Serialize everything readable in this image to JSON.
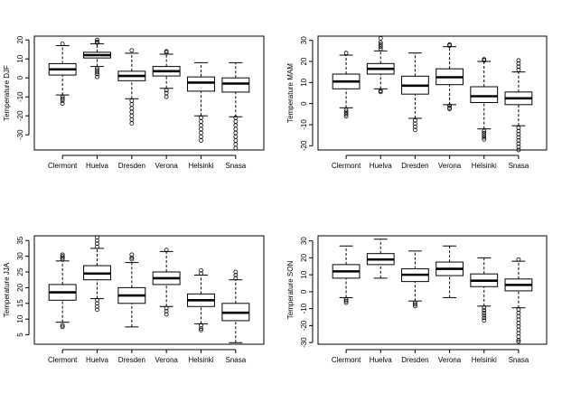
{
  "chart_data": [
    {
      "type": "boxplot",
      "ylabel": "Temperature DJF",
      "categories": [
        "Clermont",
        "Huelva",
        "Dresden",
        "Verona",
        "Helsinki",
        "Snasa"
      ],
      "yticks": [
        -30,
        -20,
        -10,
        0,
        10,
        20
      ],
      "ylim": [
        -38,
        22
      ],
      "boxes": [
        {
          "wlo": -9,
          "q1": 1.5,
          "med": 4.5,
          "q3": 7.5,
          "whi": 17,
          "outliers": [
            -10,
            -11,
            -12,
            -13.5,
            18
          ]
        },
        {
          "wlo": 6,
          "q1": 10.5,
          "med": 12,
          "q3": 13.5,
          "whi": 18,
          "outliers": [
            0.5,
            2,
            3,
            4,
            5,
            18.5,
            19,
            20
          ]
        },
        {
          "wlo": -11,
          "q1": -1.5,
          "med": 1,
          "q3": 3.5,
          "whi": 13,
          "outliers": [
            -12,
            -14,
            -16,
            -18,
            -20,
            -22,
            -24,
            14.5
          ]
        },
        {
          "wlo": -5.5,
          "q1": 1,
          "med": 3.5,
          "q3": 6,
          "whi": 12.5,
          "outliers": [
            -6.5,
            -8,
            -10,
            13.5,
            14
          ]
        },
        {
          "wlo": -20,
          "q1": -7,
          "med": -2.5,
          "q3": 0.5,
          "whi": 8,
          "outliers": [
            -21,
            -23,
            -25,
            -27,
            -29,
            -31,
            -33
          ]
        },
        {
          "wlo": -20.5,
          "q1": -7.5,
          "med": -3,
          "q3": 0,
          "whi": 8,
          "outliers": [
            -21,
            -23,
            -25,
            -27,
            -29,
            -31,
            -33,
            -35,
            -37
          ]
        }
      ]
    },
    {
      "type": "boxplot",
      "ylabel": "Temperature MAM",
      "categories": [
        "Clermont",
        "Huelva",
        "Dresden",
        "Verona",
        "Helsinki",
        "Snasa"
      ],
      "yticks": [
        -20,
        -10,
        0,
        10,
        20,
        30
      ],
      "ylim": [
        -22,
        32
      ],
      "boxes": [
        {
          "wlo": -2,
          "q1": 7,
          "med": 10.5,
          "q3": 14,
          "whi": 23,
          "outliers": [
            -3,
            -4,
            -5,
            -6,
            24
          ]
        },
        {
          "wlo": 7,
          "q1": 14,
          "med": 16.5,
          "q3": 19,
          "whi": 25,
          "outliers": [
            6,
            5.5,
            26,
            27,
            28,
            29,
            31
          ]
        },
        {
          "wlo": -7,
          "q1": 4.5,
          "med": 8.5,
          "q3": 13,
          "whi": 24,
          "outliers": [
            -8,
            -9.5,
            -11,
            -12.5
          ]
        },
        {
          "wlo": -0.5,
          "q1": 9,
          "med": 12.5,
          "q3": 16.5,
          "whi": 27,
          "outliers": [
            -1,
            -2,
            -2.5,
            27.5,
            28
          ]
        },
        {
          "wlo": -12,
          "q1": 0.5,
          "med": 3.5,
          "q3": 8,
          "whi": 20,
          "outliers": [
            -13,
            -14,
            -15,
            -16,
            -17,
            20.5,
            21
          ]
        },
        {
          "wlo": -10.5,
          "q1": -0.5,
          "med": 2.5,
          "q3": 5.5,
          "whi": 15,
          "outliers": [
            -11.5,
            -13,
            -14.5,
            -16,
            -17.5,
            -19,
            -20.5,
            -22,
            16,
            17.5,
            19,
            20.5
          ]
        }
      ]
    },
    {
      "type": "boxplot",
      "ylabel": "Temperature JJA",
      "categories": [
        "Clermont",
        "Huelva",
        "Dresden",
        "Verona",
        "Helsinki",
        "Snasa"
      ],
      "yticks": [
        5,
        10,
        15,
        20,
        25,
        30,
        35
      ],
      "ylim": [
        2,
        36.5
      ],
      "boxes": [
        {
          "wlo": 9,
          "q1": 16,
          "med": 18.5,
          "q3": 21,
          "whi": 28.5,
          "outliers": [
            8,
            7.5,
            29,
            29.5,
            30,
            30.5
          ]
        },
        {
          "wlo": 16.5,
          "q1": 22.5,
          "med": 24.5,
          "q3": 27,
          "whi": 32.5,
          "outliers": [
            16,
            15,
            14,
            13,
            33,
            34,
            35,
            36
          ]
        },
        {
          "wlo": 7.5,
          "q1": 15,
          "med": 17.5,
          "q3": 20,
          "whi": 28,
          "outliers": [
            29,
            29.5,
            30.5
          ]
        },
        {
          "wlo": 14,
          "q1": 21,
          "med": 23,
          "q3": 25,
          "whi": 31.5,
          "outliers": [
            13.5,
            12.5,
            11.5,
            32
          ]
        },
        {
          "wlo": 8.5,
          "q1": 14,
          "med": 16,
          "q3": 18,
          "whi": 24,
          "outliers": [
            8,
            7,
            6.5,
            24.5,
            25.5
          ]
        },
        {
          "wlo": 2.5,
          "q1": 9.5,
          "med": 12,
          "q3": 15,
          "whi": 22.5,
          "outliers": [
            23,
            24,
            25
          ]
        }
      ]
    },
    {
      "type": "boxplot",
      "ylabel": "Temperature SON",
      "categories": [
        "Clermont",
        "Huelva",
        "Dresden",
        "Verona",
        "Helsinki",
        "Snasa"
      ],
      "yticks": [
        -30,
        -20,
        -10,
        0,
        10,
        20,
        30
      ],
      "ylim": [
        -31,
        33
      ],
      "boxes": [
        {
          "wlo": -3.5,
          "q1": 8,
          "med": 12,
          "q3": 16,
          "whi": 27,
          "outliers": [
            -4.5,
            -5.5,
            -6.5
          ]
        },
        {
          "wlo": 8,
          "q1": 16,
          "med": 19,
          "q3": 22.5,
          "whi": 31,
          "outliers": []
        },
        {
          "wlo": -5.5,
          "q1": 6,
          "med": 10,
          "q3": 13.5,
          "whi": 24,
          "outliers": [
            -6.5,
            -7.5,
            -8.5
          ]
        },
        {
          "wlo": -3.5,
          "q1": 9.5,
          "med": 13.5,
          "q3": 17.5,
          "whi": 27,
          "outliers": []
        },
        {
          "wlo": -8.5,
          "q1": 3,
          "med": 6.5,
          "q3": 10.5,
          "whi": 20,
          "outliers": [
            -9.5,
            -11,
            -12.5,
            -14,
            -15.5,
            -17
          ]
        },
        {
          "wlo": -9.5,
          "q1": 0.5,
          "med": 4,
          "q3": 7.5,
          "whi": 18,
          "outliers": [
            -10.5,
            -12.5,
            -14.5,
            -16.5,
            -18.5,
            -20.5,
            -22.5,
            -24.5,
            -26.5,
            -28.5,
            -29.5,
            19
          ]
        }
      ]
    }
  ]
}
